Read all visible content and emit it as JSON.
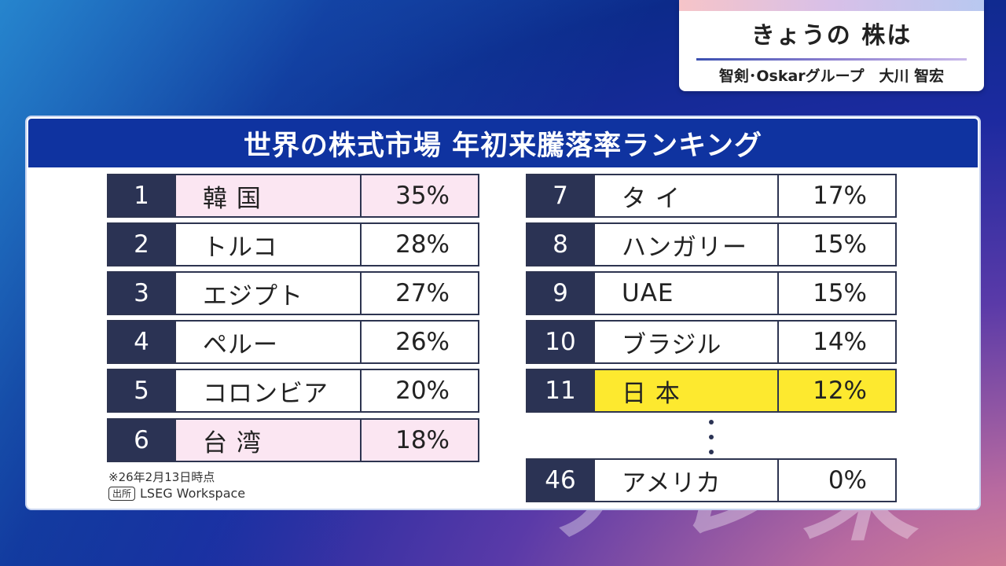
{
  "caption": {
    "title": "きょうの 株は",
    "subtitle": "智剣･Oskarグループ　大川 智宏"
  },
  "panel": {
    "title": "世界の株式市場 年初来騰落率ランキング"
  },
  "left_rows": [
    {
      "rank": "1",
      "country": "韓 国",
      "pct": "35%"
    },
    {
      "rank": "2",
      "country": "トルコ",
      "pct": "28%"
    },
    {
      "rank": "3",
      "country": "エジプト",
      "pct": "27%"
    },
    {
      "rank": "4",
      "country": "ペルー",
      "pct": "26%"
    },
    {
      "rank": "5",
      "country": "コロンビア",
      "pct": "20%"
    },
    {
      "rank": "6",
      "country": "台 湾",
      "pct": "18%"
    }
  ],
  "right_rows": [
    {
      "rank": "7",
      "country": "タ イ",
      "pct": "17%"
    },
    {
      "rank": "8",
      "country": "ハンガリー",
      "pct": "15%"
    },
    {
      "rank": "9",
      "country": "UAE",
      "pct": "15%"
    },
    {
      "rank": "10",
      "country": "ブラジル",
      "pct": "14%"
    },
    {
      "rank": "11",
      "country": "日 本",
      "pct": "12%"
    },
    {
      "rank": "46",
      "country": "アメリカ",
      "pct": "0%"
    }
  ],
  "notes": {
    "date_note": "※26年2月13日時点",
    "source_badge": "出所",
    "source": "LSEG Workspace"
  },
  "colors": {
    "header_blue": "#0f33a0",
    "rank_navy": "#2b3354",
    "highlight_pink": "#fbe6f2",
    "highlight_yellow": "#fde92f"
  }
}
